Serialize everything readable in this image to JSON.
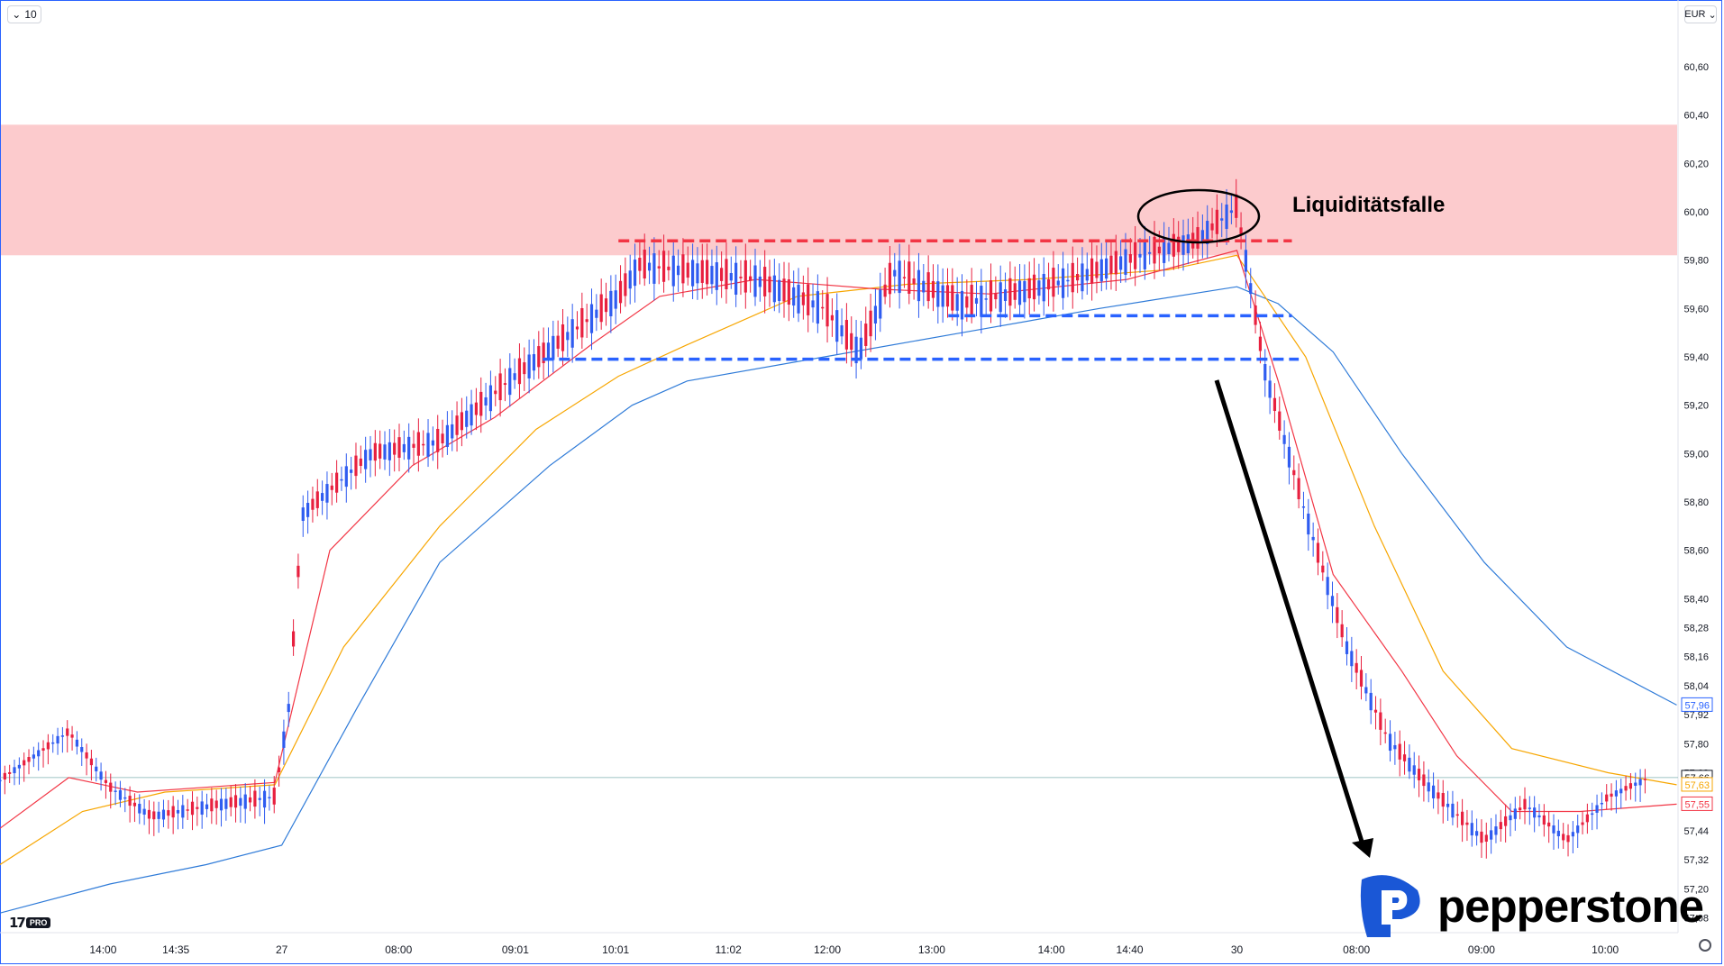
{
  "toolbar": {
    "interval_label": "10",
    "currency_label": "EUR"
  },
  "annotation": {
    "label": "Liquiditätsfalle"
  },
  "branding": {
    "tv_mark": "17",
    "tv_badge": "PRO",
    "broker": "pepperstone"
  },
  "chart_data": {
    "type": "candlestick",
    "ylim": [
      57.05,
      60.75
    ],
    "y_ticks": [
      "60,60",
      "60,40",
      "60,20",
      "60,00",
      "59,80",
      "59,60",
      "59,40",
      "59,20",
      "59,00",
      "58,80",
      "58,60",
      "58,40",
      "58,28",
      "58,16",
      "58,04",
      "57,92",
      "57,80",
      "57,68",
      "57,44",
      "57,32",
      "57,20",
      "57,08"
    ],
    "y_tick_values": [
      60.6,
      60.4,
      60.2,
      60.0,
      59.8,
      59.6,
      59.4,
      59.2,
      59.0,
      58.8,
      58.6,
      58.4,
      58.28,
      58.16,
      58.04,
      57.92,
      57.8,
      57.68,
      57.44,
      57.32,
      57.2,
      57.08
    ],
    "x_ticks": [
      "14:00",
      "14:35",
      "27",
      "08:00",
      "09:01",
      "10:01",
      "11:02",
      "12:00",
      "13:00",
      "14:00",
      "14:40",
      "30",
      "08:00",
      "09:00",
      "10:00"
    ],
    "x_tick_pos": [
      0.075,
      0.128,
      0.205,
      0.29,
      0.375,
      0.448,
      0.53,
      0.602,
      0.678,
      0.765,
      0.822,
      0.9,
      0.987,
      1.078,
      1.168
    ],
    "price_labels": [
      {
        "value": 57.96,
        "text": "57,96",
        "color": "#2962ff"
      },
      {
        "value": 57.66,
        "text": "57,66",
        "color": "#131722"
      },
      {
        "value": 57.63,
        "text": "57,63",
        "color": "#f7a600"
      },
      {
        "value": 57.55,
        "text": "57,55",
        "color": "#f23645"
      }
    ],
    "resistance_zone": {
      "from": 59.82,
      "to": 60.36,
      "color": "#fccbcd"
    },
    "levels": [
      {
        "value": 59.88,
        "color": "#f23645",
        "from": 0.45,
        "to": 0.94
      },
      {
        "value": 59.57,
        "color": "#2962ff",
        "from": 0.69,
        "to": 0.94
      },
      {
        "value": 59.39,
        "color": "#2962ff",
        "from": 0.395,
        "to": 0.945
      }
    ],
    "current_price": 57.66,
    "series": [
      {
        "name": "ema_slow",
        "color": "#2f7bd8",
        "points": [
          [
            0,
            57.1
          ],
          [
            0.08,
            57.22
          ],
          [
            0.15,
            57.3
          ],
          [
            0.205,
            57.38
          ],
          [
            0.26,
            57.95
          ],
          [
            0.32,
            58.55
          ],
          [
            0.4,
            58.95
          ],
          [
            0.46,
            59.2
          ],
          [
            0.5,
            59.3
          ],
          [
            0.6,
            59.4
          ],
          [
            0.7,
            59.5
          ],
          [
            0.8,
            59.6
          ],
          [
            0.9,
            59.69
          ],
          [
            0.93,
            59.62
          ],
          [
            0.97,
            59.42
          ],
          [
            1.02,
            59.0
          ],
          [
            1.08,
            58.55
          ],
          [
            1.14,
            58.2
          ],
          [
            1.22,
            57.96
          ]
        ]
      },
      {
        "name": "ema_mid",
        "color": "#f7a600",
        "points": [
          [
            0,
            57.3
          ],
          [
            0.06,
            57.52
          ],
          [
            0.12,
            57.6
          ],
          [
            0.2,
            57.63
          ],
          [
            0.25,
            58.2
          ],
          [
            0.32,
            58.7
          ],
          [
            0.39,
            59.1
          ],
          [
            0.45,
            59.32
          ],
          [
            0.5,
            59.45
          ],
          [
            0.58,
            59.65
          ],
          [
            0.66,
            59.7
          ],
          [
            0.75,
            59.72
          ],
          [
            0.85,
            59.76
          ],
          [
            0.9,
            59.82
          ],
          [
            0.95,
            59.4
          ],
          [
            1.0,
            58.7
          ],
          [
            1.05,
            58.1
          ],
          [
            1.1,
            57.78
          ],
          [
            1.17,
            57.68
          ],
          [
            1.22,
            57.63
          ]
        ]
      },
      {
        "name": "ema_fast",
        "color": "#f23645",
        "points": [
          [
            0,
            57.45
          ],
          [
            0.05,
            57.66
          ],
          [
            0.1,
            57.6
          ],
          [
            0.2,
            57.64
          ],
          [
            0.24,
            58.6
          ],
          [
            0.3,
            58.95
          ],
          [
            0.36,
            59.15
          ],
          [
            0.43,
            59.45
          ],
          [
            0.48,
            59.65
          ],
          [
            0.55,
            59.72
          ],
          [
            0.64,
            59.68
          ],
          [
            0.72,
            59.66
          ],
          [
            0.82,
            59.72
          ],
          [
            0.9,
            59.84
          ],
          [
            0.93,
            59.3
          ],
          [
            0.97,
            58.5
          ],
          [
            1.02,
            58.1
          ],
          [
            1.06,
            57.75
          ],
          [
            1.1,
            57.52
          ],
          [
            1.15,
            57.52
          ],
          [
            1.22,
            57.55
          ]
        ]
      },
      {
        "name": "price_path",
        "color": "#000000",
        "points": [
          [
            0,
            57.65
          ],
          [
            0.05,
            57.85
          ],
          [
            0.08,
            57.62
          ],
          [
            0.11,
            57.5
          ],
          [
            0.16,
            57.55
          ],
          [
            0.2,
            57.58
          ],
          [
            0.21,
            57.95
          ],
          [
            0.22,
            58.75
          ],
          [
            0.27,
            59.0
          ],
          [
            0.32,
            59.05
          ],
          [
            0.37,
            59.3
          ],
          [
            0.45,
            59.65
          ],
          [
            0.465,
            59.78
          ],
          [
            0.55,
            59.72
          ],
          [
            0.6,
            59.6
          ],
          [
            0.625,
            59.42
          ],
          [
            0.65,
            59.75
          ],
          [
            0.7,
            59.62
          ],
          [
            0.75,
            59.68
          ],
          [
            0.78,
            59.72
          ],
          [
            0.83,
            59.82
          ],
          [
            0.87,
            59.88
          ],
          [
            0.9,
            60.02
          ],
          [
            0.92,
            59.35
          ],
          [
            0.95,
            58.75
          ],
          [
            0.98,
            58.2
          ],
          [
            1.01,
            57.82
          ],
          [
            1.04,
            57.62
          ],
          [
            1.08,
            57.4
          ],
          [
            1.11,
            57.55
          ],
          [
            1.14,
            57.4
          ],
          [
            1.17,
            57.58
          ],
          [
            1.2,
            57.66
          ]
        ]
      }
    ]
  }
}
